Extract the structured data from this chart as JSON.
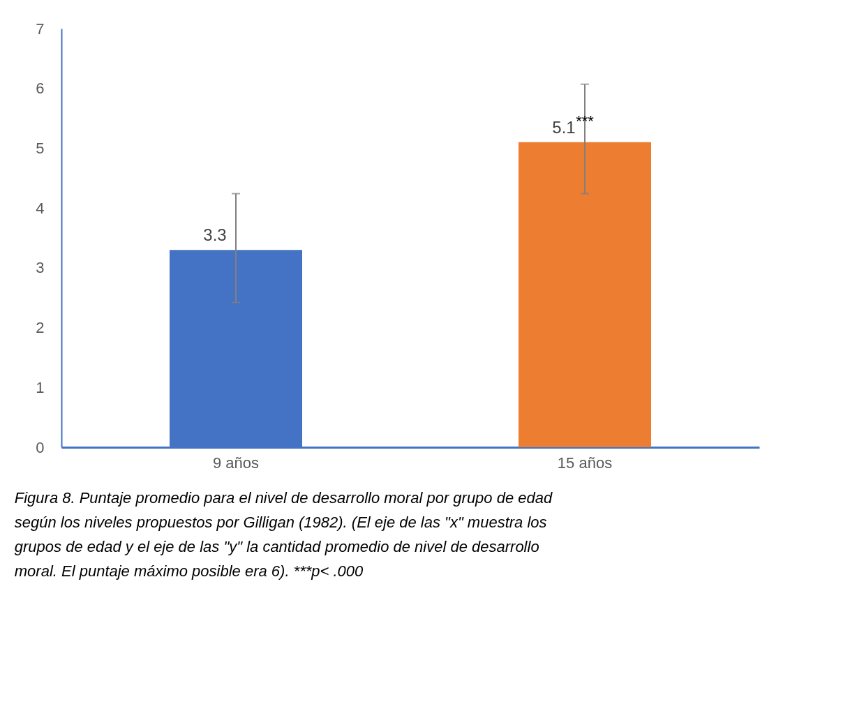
{
  "chart_data": {
    "type": "bar",
    "categories": [
      "9 años",
      "15 años"
    ],
    "values": [
      3.3,
      5.1
    ],
    "data_labels": true,
    "colors": [
      "#4472c4",
      "#ed7d31"
    ],
    "errors": [
      [
        2.42,
        4.24
      ],
      [
        4.24,
        6.07
      ]
    ],
    "ylim": [
      0,
      7
    ],
    "yticks": [
      0,
      1,
      2,
      3,
      4,
      5,
      6,
      7
    ],
    "grid": false,
    "annotations": [
      {
        "text": "***",
        "x": "15 años",
        "y": 5.45
      },
      "Figura 8. Puntaje promedio para el nivel de desarrollo moral por grupo de edad según los niveles propuestos por Gilligan (1982). (El eje de las \"x\" muestra los grupos de edad y el eje de las \"y\" la cantidad promedio de nivel de desarrollo moral. El puntaje máximo posible era 6). ***p< .000"
    ]
  }
}
